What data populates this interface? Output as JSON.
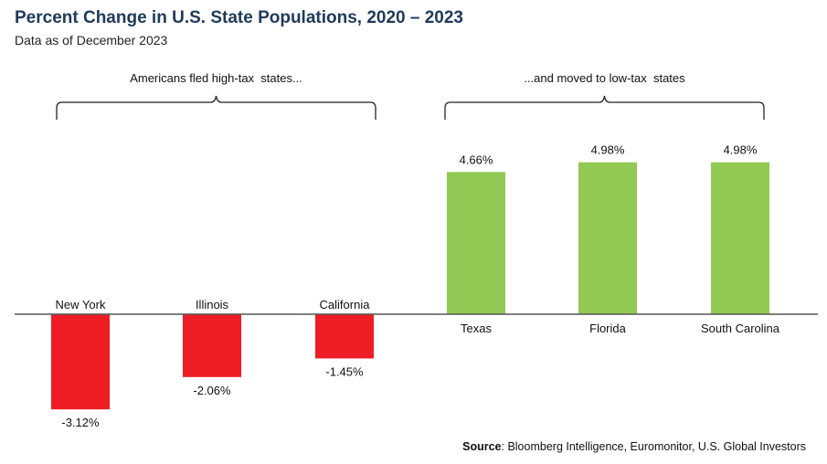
{
  "chart_data": {
    "type": "bar",
    "title": "Percent Change in U.S. State Populations, 2020 – 2023",
    "subtitle": "Data as of December 2023",
    "categories": [
      "New York",
      "Illinois",
      "California",
      "Texas",
      "Florida",
      "South Carolina"
    ],
    "values": [
      -3.12,
      -2.06,
      -1.45,
      4.66,
      4.98,
      4.98
    ],
    "value_labels": [
      "-3.12%",
      "-2.06%",
      "-1.45%",
      "4.66%",
      "4.98%",
      "4.98%"
    ],
    "ylim": [
      -3.5,
      5.5
    ],
    "grid": false,
    "colors": {
      "negative": "#ee1c25",
      "positive": "#92c954",
      "axis": "#555555",
      "title": "#1f3a5a"
    },
    "annotations": [
      {
        "text": "Americans fled high-tax  states...",
        "group": "negative"
      },
      {
        "text": "...and moved to low-tax  states",
        "group": "positive"
      }
    ]
  },
  "source": {
    "label": "Source",
    "text": ": Bloomberg Intelligence, Euromonitor, U.S. Global Investors"
  }
}
